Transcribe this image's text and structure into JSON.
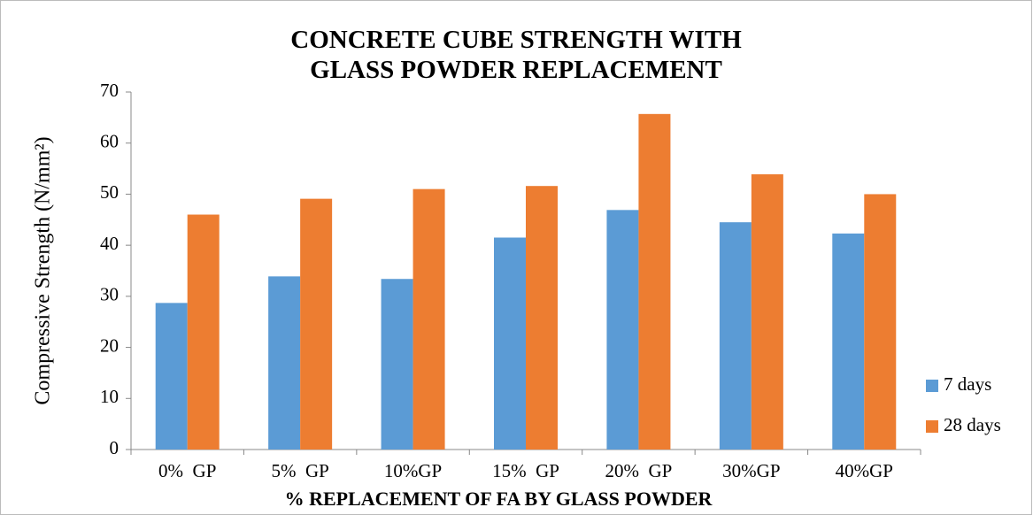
{
  "chart_data": {
    "type": "bar",
    "title": "CONCRETE CUBE STRENGTH WITH GLASS POWDER REPLACEMENT",
    "x_label": "% REPLACEMENT OF FA BY GLASS POWDER",
    "y_label": "Compressive Strength (N/mm²)",
    "categories": [
      "0%  GP",
      "5%  GP",
      "10%GP",
      "15%  GP",
      "20%  GP",
      "30%GP",
      "40%GP"
    ],
    "series": [
      {
        "name": "7 days",
        "color": "#5b9bd5",
        "values": [
          28.7,
          33.9,
          33.4,
          41.5,
          46.9,
          44.5,
          42.3
        ]
      },
      {
        "name": "28 days",
        "color": "#ed7d31",
        "values": [
          46,
          49.1,
          51,
          51.6,
          65.7,
          53.9,
          50
        ]
      }
    ],
    "ylim": [
      0,
      70
    ],
    "yticks": [
      0,
      10,
      20,
      30,
      40,
      50,
      60,
      70
    ],
    "grid": false,
    "legend": "right"
  }
}
